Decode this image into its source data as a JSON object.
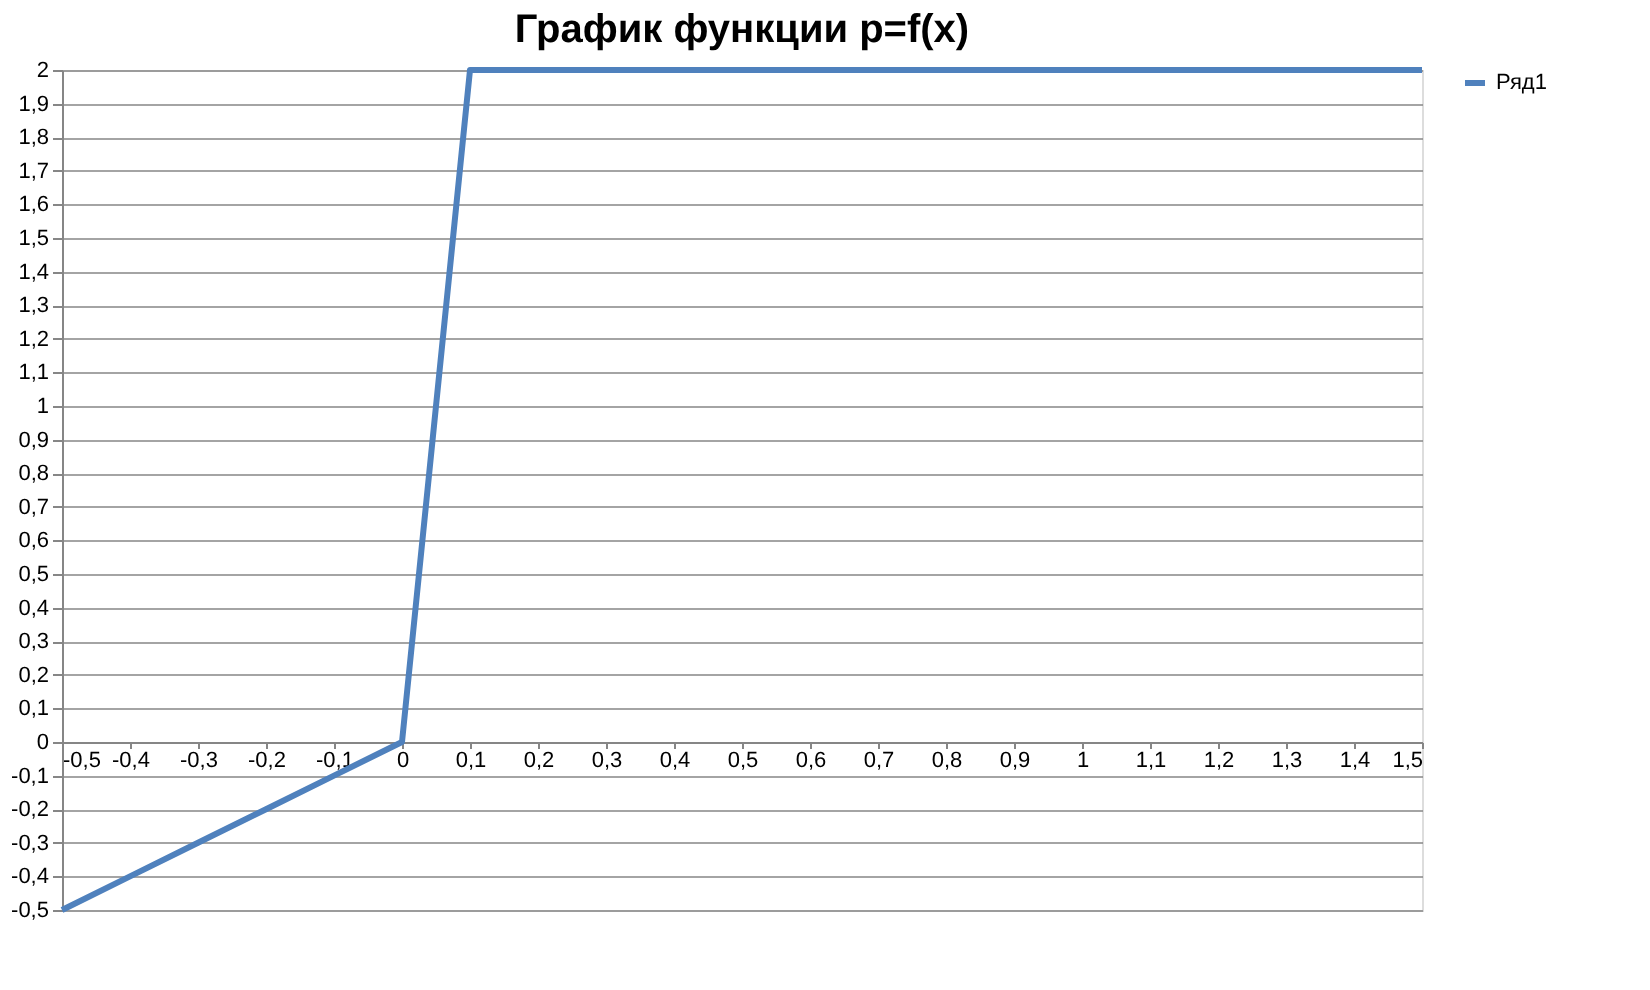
{
  "chart_data": {
    "type": "line",
    "title": "График функции p=f(x)",
    "categories": [
      "-0,5",
      "-0,4",
      "-0,3",
      "-0,2",
      "-0,1",
      "0",
      "0,1",
      "0,2",
      "0,3",
      "0,4",
      "0,5",
      "0,6",
      "0,7",
      "0,8",
      "0,9",
      "1",
      "1,1",
      "1,2",
      "1,3",
      "1,4",
      "1,5"
    ],
    "series": [
      {
        "name": "Ряд1",
        "color": "#4f81bd",
        "values": [
          -0.5,
          -0.4,
          -0.3,
          -0.2,
          -0.1,
          0,
          2,
          2,
          2,
          2,
          2,
          2,
          2,
          2,
          2,
          2,
          2,
          2,
          2,
          2,
          2
        ]
      }
    ],
    "ylim": [
      -0.5,
      2
    ],
    "yticks": [
      {
        "value": -0.5,
        "label": "-0,5"
      },
      {
        "value": -0.4,
        "label": "-0,4"
      },
      {
        "value": -0.3,
        "label": "-0,3"
      },
      {
        "value": -0.2,
        "label": "-0,2"
      },
      {
        "value": -0.1,
        "label": "-0,1"
      },
      0,
      {
        "value": 0.1,
        "label": "0,1"
      },
      {
        "value": 0.2,
        "label": "0,2"
      },
      {
        "value": 0.3,
        "label": "0,3"
      },
      {
        "value": 0.4,
        "label": "0,4"
      },
      {
        "value": 0.5,
        "label": "0,5"
      },
      {
        "value": 0.6,
        "label": "0,6"
      },
      {
        "value": 0.7,
        "label": "0,7"
      },
      {
        "value": 0.8,
        "label": "0,8"
      },
      {
        "value": 0.9,
        "label": "0,9"
      },
      1,
      {
        "value": 1.1,
        "label": "1,1"
      },
      {
        "value": 1.2,
        "label": "1,2"
      },
      {
        "value": 1.3,
        "label": "1,3"
      },
      {
        "value": 1.4,
        "label": "1,4"
      },
      {
        "value": 1.5,
        "label": "1,5"
      },
      {
        "value": 1.6,
        "label": "1,6"
      },
      {
        "value": 1.7,
        "label": "1,7"
      },
      {
        "value": 1.8,
        "label": "1,8"
      },
      {
        "value": 1.9,
        "label": "1,9"
      },
      2
    ],
    "grid": "y",
    "legend": "right",
    "marker": "none",
    "line_style": "solid"
  }
}
